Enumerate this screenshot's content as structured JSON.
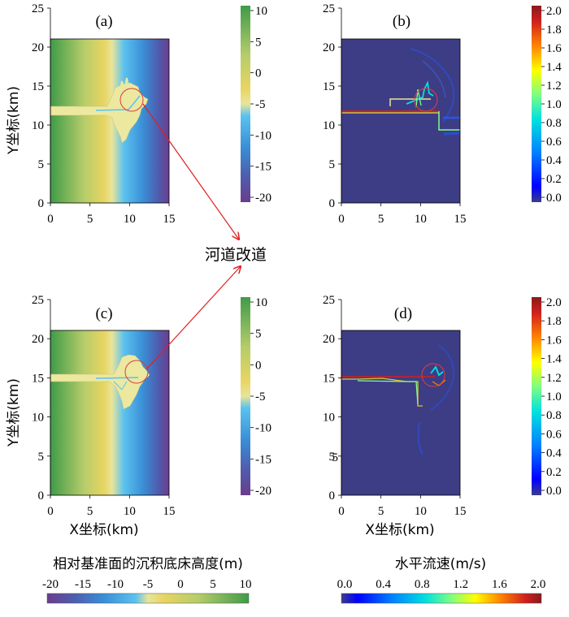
{
  "chart_data": [
    {
      "id": "a",
      "type": "heatmap",
      "panel_label": "(a)",
      "xlabel": "",
      "ylabel": "Y坐标(km)",
      "xlim": [
        0,
        15
      ],
      "ylim": [
        0,
        25
      ],
      "x_ticks": [
        0,
        5,
        10,
        15
      ],
      "y_ticks": [
        0,
        5,
        10,
        15,
        20,
        25
      ],
      "colorbar": {
        "ticks": [
          10,
          5,
          0,
          -5,
          -10,
          -15,
          -20
        ],
        "range": [
          -20,
          10
        ],
        "colormap": "bed-elevation"
      }
    },
    {
      "id": "b",
      "type": "heatmap",
      "panel_label": "(b)",
      "xlabel": "",
      "ylabel": "",
      "xlim": [
        0,
        15
      ],
      "ylim": [
        0,
        25
      ],
      "x_ticks": [
        0,
        5,
        10,
        15
      ],
      "y_ticks": [
        0,
        5,
        10,
        15,
        20,
        25
      ],
      "colorbar": {
        "ticks": [
          "2.0",
          "1.8",
          "1.6",
          "1.4",
          "1.2",
          "1.0",
          "0.8",
          "0.6",
          "0.4",
          "0.2",
          "0.0"
        ],
        "range": [
          0,
          2
        ],
        "colormap": "jet"
      }
    },
    {
      "id": "c",
      "type": "heatmap",
      "panel_label": "(c)",
      "xlabel": "X坐标(km)",
      "ylabel": "Y坐标(km)",
      "xlim": [
        0,
        15
      ],
      "ylim": [
        0,
        25
      ],
      "x_ticks": [
        0,
        5,
        10,
        15
      ],
      "y_ticks": [
        0,
        5,
        10,
        15,
        20,
        25
      ],
      "colorbar": {
        "ticks": [
          10,
          5,
          0,
          -5,
          -10,
          -15,
          -20
        ],
        "range": [
          -20,
          10
        ],
        "colormap": "bed-elevation"
      }
    },
    {
      "id": "d",
      "type": "heatmap",
      "panel_label": "(d)",
      "xlabel": "X坐标(km)",
      "ylabel": "",
      "xlim": [
        0,
        15
      ],
      "ylim": [
        0,
        25
      ],
      "x_ticks": [
        0,
        5,
        10,
        15
      ],
      "y_ticks": [
        0,
        5,
        10,
        15,
        20,
        25
      ],
      "colorbar": {
        "ticks": [
          "2.0",
          "1.8",
          "1.6",
          "1.4",
          "1.2",
          "1.0",
          "0.8",
          "0.6",
          "0.4",
          "0.2",
          "0.0"
        ],
        "range": [
          0,
          2
        ],
        "colormap": "jet"
      }
    }
  ],
  "annotation": {
    "text": "河道改道"
  },
  "stray_label": "5",
  "legend_elevation": {
    "title": "相对基准面的沉积底床高度(m)",
    "ticks": [
      "-20",
      "-15",
      "-10",
      "-5",
      "0",
      "5",
      "10"
    ]
  },
  "legend_velocity": {
    "title": "水平流速(m/s)",
    "ticks": [
      "0.0",
      "0.4",
      "0.8",
      "1.2",
      "1.6",
      "2.0"
    ]
  },
  "colors": {
    "elevation_ramp": [
      "#6a3d8e",
      "#4d5fb0",
      "#3a8fd6",
      "#5bc2f0",
      "#e8e49a",
      "#e7d562",
      "#b5cc6a",
      "#3f9b48"
    ],
    "jet_ramp": [
      "#3b3d8c",
      "#0000ff",
      "#0080ff",
      "#00e0e0",
      "#80ff80",
      "#ffff00",
      "#ff8000",
      "#d02020",
      "#8a1a1a"
    ],
    "velocity_background": "#3d3d85",
    "deposit": "#ece8a0",
    "arrow": "#e02020",
    "circle": "#d84040"
  }
}
